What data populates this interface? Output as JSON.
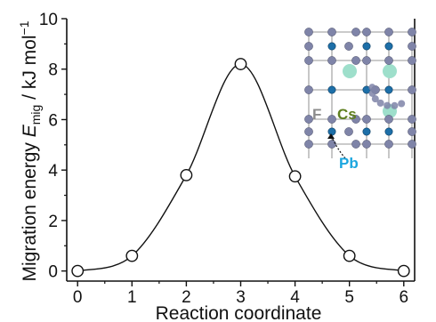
{
  "chart_data": {
    "type": "line",
    "title": "",
    "xlabel": "Reaction coordinate",
    "ylabel": {
      "prefix": "Migration energy ",
      "symbol": "E",
      "subscript": "mig",
      "unit": " / kJ mol",
      "unit_sup": "−1"
    },
    "xlim": [
      -0.2,
      6.2
    ],
    "ylim": [
      -0.4,
      10
    ],
    "xticks": [
      "0",
      "1",
      "2",
      "3",
      "4",
      "5",
      "6"
    ],
    "yticks": [
      "0",
      "2",
      "4",
      "6",
      "8",
      "10"
    ],
    "grid": false,
    "series": [
      {
        "x": [
          0,
          1,
          2,
          3,
          4,
          5,
          6
        ],
        "values": [
          0.0,
          0.6,
          3.8,
          8.2,
          3.75,
          0.6,
          0.0
        ],
        "marker": "open-circle",
        "curve": "smooth"
      }
    ],
    "inset": {
      "labels": [
        "F",
        "Cs",
        "Pb"
      ],
      "colors": {
        "F": "#8c8c8c",
        "Cs": "#5f7f1f",
        "Pb": "#1ba6df",
        "fluorine_atom": "#7f84a8",
        "lead_atom": "#1d6fa8",
        "cesium_atom": "#9edfcb",
        "bond": "#3a3a3a"
      }
    }
  }
}
